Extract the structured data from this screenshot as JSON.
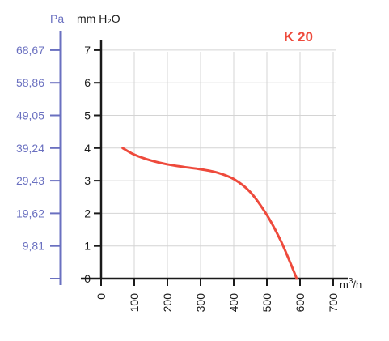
{
  "chart_data": {
    "type": "line",
    "title": "K 20",
    "series": [
      {
        "name": "K 20",
        "x": [
          65,
          100,
          150,
          200,
          250,
          300,
          350,
          400,
          450,
          500,
          540,
          570,
          590
        ],
        "y": [
          4.0,
          3.8,
          3.62,
          3.5,
          3.42,
          3.35,
          3.25,
          3.05,
          2.65,
          1.95,
          1.2,
          0.5,
          0.0
        ]
      }
    ],
    "x_axis": {
      "label_base": "m",
      "label_sup": "3",
      "label_rest": "/h",
      "ticks": [
        0,
        100,
        200,
        300,
        400,
        500,
        600,
        700
      ],
      "range": [
        0,
        720
      ]
    },
    "y_axis_left": {
      "label": "Pa",
      "ticks": [
        "9,81",
        "19,62",
        "29,43",
        "39,24",
        "49,05",
        "58,86",
        "68,67"
      ]
    },
    "y_axis_main": {
      "label": "mm H₂O",
      "ticks": [
        0,
        1,
        2,
        3,
        4,
        5,
        6,
        7
      ],
      "range": [
        0,
        7
      ]
    },
    "grid": true,
    "colors": {
      "curve": "#ee4a3c",
      "title": "#ee4a3c",
      "pa_axis": "#6a70c0",
      "axis": "#1a1a1a",
      "grid": "#d4d4d4"
    }
  }
}
